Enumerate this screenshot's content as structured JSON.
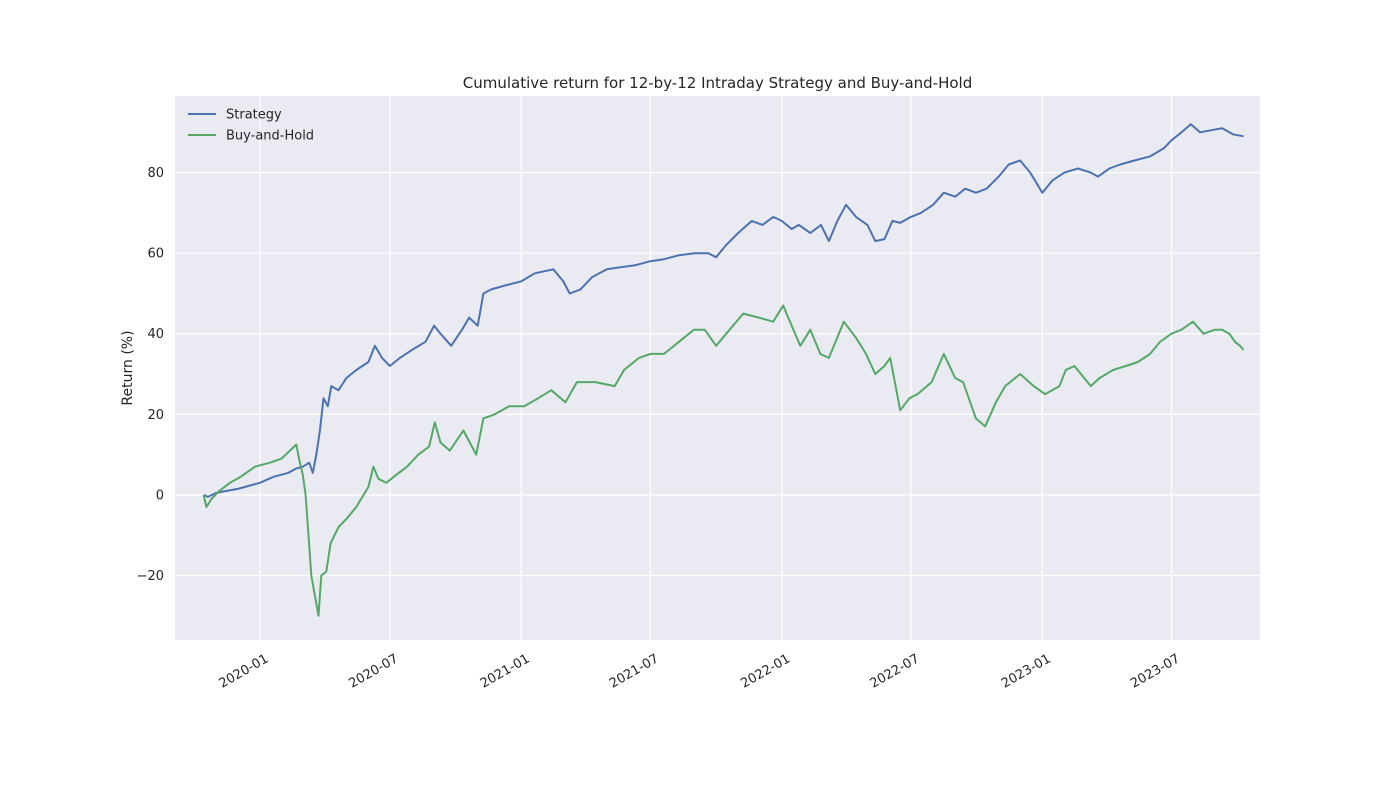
{
  "chart_data": {
    "type": "line",
    "title": "Cumulative return for 12-by-12 Intraday Strategy and Buy-and-Hold",
    "xlabel": "",
    "ylabel": "Return (%)",
    "x_axis_type": "date",
    "xlim": [
      "2019-09-04",
      "2023-11-02"
    ],
    "ylim": [
      -36,
      99
    ],
    "x_ticks": [
      "2020-01-01",
      "2020-07-01",
      "2021-01-01",
      "2021-07-01",
      "2022-01-01",
      "2022-07-01",
      "2023-01-01",
      "2023-07-01"
    ],
    "x_tick_labels": [
      "2020-01",
      "2020-07",
      "2021-01",
      "2021-07",
      "2022-01",
      "2022-07",
      "2023-01",
      "2023-07"
    ],
    "y_ticks": [
      -20,
      0,
      20,
      40,
      60,
      80
    ],
    "y_tick_labels": [
      "−20",
      "0",
      "20",
      "40",
      "60",
      "80"
    ],
    "grid": true,
    "legend_position": "top-left",
    "series": [
      {
        "name": "Strategy",
        "color": "#4c72b0",
        "points": [
          [
            "2019-10-14",
            0
          ],
          [
            "2019-10-20",
            -0.5
          ],
          [
            "2019-11-01",
            0.5
          ],
          [
            "2019-11-15",
            1
          ],
          [
            "2019-12-01",
            1.5
          ],
          [
            "2019-12-15",
            2.2
          ],
          [
            "2020-01-01",
            3
          ],
          [
            "2020-01-20",
            4.5
          ],
          [
            "2020-02-10",
            5.5
          ],
          [
            "2020-02-20",
            6.5
          ],
          [
            "2020-03-01",
            7
          ],
          [
            "2020-03-10",
            8
          ],
          [
            "2020-03-15",
            5.5
          ],
          [
            "2020-03-20",
            10
          ],
          [
            "2020-03-25",
            16
          ],
          [
            "2020-03-30",
            24
          ],
          [
            "2020-04-05",
            22
          ],
          [
            "2020-04-10",
            27
          ],
          [
            "2020-04-20",
            26
          ],
          [
            "2020-05-01",
            29
          ],
          [
            "2020-05-15",
            31
          ],
          [
            "2020-06-01",
            33
          ],
          [
            "2020-06-10",
            37
          ],
          [
            "2020-06-20",
            34
          ],
          [
            "2020-07-01",
            32
          ],
          [
            "2020-07-15",
            34
          ],
          [
            "2020-08-01",
            36
          ],
          [
            "2020-08-20",
            38
          ],
          [
            "2020-09-01",
            42
          ],
          [
            "2020-09-10",
            40
          ],
          [
            "2020-09-25",
            37
          ],
          [
            "2020-10-10",
            41
          ],
          [
            "2020-10-20",
            44
          ],
          [
            "2020-11-01",
            42
          ],
          [
            "2020-11-09",
            50
          ],
          [
            "2020-11-20",
            51
          ],
          [
            "2020-12-10",
            52
          ],
          [
            "2021-01-01",
            53
          ],
          [
            "2021-01-20",
            55
          ],
          [
            "2021-02-15",
            56
          ],
          [
            "2021-03-01",
            53
          ],
          [
            "2021-03-10",
            50
          ],
          [
            "2021-03-25",
            51
          ],
          [
            "2021-04-10",
            54
          ],
          [
            "2021-05-01",
            56
          ],
          [
            "2021-05-20",
            56.5
          ],
          [
            "2021-06-10",
            57
          ],
          [
            "2021-07-01",
            58
          ],
          [
            "2021-07-20",
            58.5
          ],
          [
            "2021-08-10",
            59.5
          ],
          [
            "2021-09-01",
            60
          ],
          [
            "2021-09-20",
            60
          ],
          [
            "2021-10-01",
            59
          ],
          [
            "2021-10-15",
            62
          ],
          [
            "2021-11-01",
            65
          ],
          [
            "2021-11-20",
            68
          ],
          [
            "2021-12-05",
            67
          ],
          [
            "2021-12-20",
            69
          ],
          [
            "2022-01-01",
            68
          ],
          [
            "2022-01-15",
            66
          ],
          [
            "2022-01-25",
            67
          ],
          [
            "2022-02-10",
            65
          ],
          [
            "2022-02-25",
            67
          ],
          [
            "2022-03-08",
            63
          ],
          [
            "2022-03-20",
            68
          ],
          [
            "2022-04-01",
            72
          ],
          [
            "2022-04-15",
            69
          ],
          [
            "2022-05-01",
            67
          ],
          [
            "2022-05-12",
            63
          ],
          [
            "2022-05-25",
            63.5
          ],
          [
            "2022-06-05",
            68
          ],
          [
            "2022-06-16",
            67.5
          ],
          [
            "2022-07-01",
            69
          ],
          [
            "2022-07-15",
            70
          ],
          [
            "2022-08-01",
            72
          ],
          [
            "2022-08-16",
            75
          ],
          [
            "2022-09-01",
            74
          ],
          [
            "2022-09-15",
            76
          ],
          [
            "2022-09-30",
            75
          ],
          [
            "2022-10-15",
            76
          ],
          [
            "2022-11-01",
            79
          ],
          [
            "2022-11-15",
            82
          ],
          [
            "2022-12-01",
            83
          ],
          [
            "2022-12-15",
            80
          ],
          [
            "2023-01-01",
            75
          ],
          [
            "2023-01-15",
            78
          ],
          [
            "2023-02-01",
            80
          ],
          [
            "2023-02-20",
            81
          ],
          [
            "2023-03-10",
            80
          ],
          [
            "2023-03-20",
            79
          ],
          [
            "2023-04-05",
            81
          ],
          [
            "2023-04-20",
            82
          ],
          [
            "2023-05-10",
            83
          ],
          [
            "2023-06-01",
            84
          ],
          [
            "2023-06-20",
            86
          ],
          [
            "2023-07-01",
            88
          ],
          [
            "2023-07-15",
            90
          ],
          [
            "2023-07-28",
            92
          ],
          [
            "2023-08-10",
            90
          ],
          [
            "2023-08-25",
            90.5
          ],
          [
            "2023-09-10",
            91
          ],
          [
            "2023-09-25",
            89.5
          ],
          [
            "2023-10-10",
            89
          ]
        ]
      },
      {
        "name": "Buy-and-Hold",
        "color": "#55a868",
        "points": [
          [
            "2019-10-14",
            0
          ],
          [
            "2019-10-18",
            -3
          ],
          [
            "2019-10-25",
            -1
          ],
          [
            "2019-11-05",
            1
          ],
          [
            "2019-11-20",
            3
          ],
          [
            "2019-12-05",
            4.5
          ],
          [
            "2019-12-25",
            7
          ],
          [
            "2020-01-15",
            8
          ],
          [
            "2020-01-31",
            9
          ],
          [
            "2020-02-12",
            11
          ],
          [
            "2020-02-21",
            12.5
          ],
          [
            "2020-02-26",
            8
          ],
          [
            "2020-03-01",
            5
          ],
          [
            "2020-03-05",
            0
          ],
          [
            "2020-03-09",
            -10
          ],
          [
            "2020-03-13",
            -20
          ],
          [
            "2020-03-18",
            -25
          ],
          [
            "2020-03-23",
            -30
          ],
          [
            "2020-03-27",
            -20
          ],
          [
            "2020-04-03",
            -19
          ],
          [
            "2020-04-09",
            -12
          ],
          [
            "2020-04-20",
            -8
          ],
          [
            "2020-05-01",
            -6
          ],
          [
            "2020-05-15",
            -3
          ],
          [
            "2020-06-01",
            2
          ],
          [
            "2020-06-08",
            7
          ],
          [
            "2020-06-15",
            4
          ],
          [
            "2020-06-26",
            3
          ],
          [
            "2020-07-10",
            5
          ],
          [
            "2020-07-25",
            7
          ],
          [
            "2020-08-10",
            10
          ],
          [
            "2020-08-25",
            12
          ],
          [
            "2020-09-02",
            18
          ],
          [
            "2020-09-10",
            13
          ],
          [
            "2020-09-23",
            11
          ],
          [
            "2020-10-12",
            16
          ],
          [
            "2020-10-30",
            10
          ],
          [
            "2020-11-09",
            19
          ],
          [
            "2020-11-25",
            20
          ],
          [
            "2020-12-15",
            22
          ],
          [
            "2021-01-05",
            22
          ],
          [
            "2021-01-25",
            24
          ],
          [
            "2021-02-12",
            26
          ],
          [
            "2021-03-04",
            23
          ],
          [
            "2021-03-20",
            28
          ],
          [
            "2021-04-15",
            28
          ],
          [
            "2021-05-12",
            27
          ],
          [
            "2021-05-25",
            31
          ],
          [
            "2021-06-15",
            34
          ],
          [
            "2021-07-01",
            35
          ],
          [
            "2021-07-20",
            35
          ],
          [
            "2021-08-10",
            38
          ],
          [
            "2021-08-31",
            41
          ],
          [
            "2021-09-15",
            41
          ],
          [
            "2021-10-01",
            37
          ],
          [
            "2021-10-20",
            41
          ],
          [
            "2021-11-08",
            45
          ],
          [
            "2021-11-30",
            44
          ],
          [
            "2021-12-20",
            43
          ],
          [
            "2022-01-03",
            47
          ],
          [
            "2022-01-10",
            44
          ],
          [
            "2022-01-27",
            37
          ],
          [
            "2022-02-10",
            41
          ],
          [
            "2022-02-24",
            35
          ],
          [
            "2022-03-08",
            34
          ],
          [
            "2022-03-29",
            43
          ],
          [
            "2022-04-15",
            39
          ],
          [
            "2022-04-29",
            35
          ],
          [
            "2022-05-12",
            30
          ],
          [
            "2022-05-25",
            32
          ],
          [
            "2022-06-02",
            34
          ],
          [
            "2022-06-16",
            21
          ],
          [
            "2022-06-29",
            24
          ],
          [
            "2022-07-10",
            25
          ],
          [
            "2022-07-30",
            28
          ],
          [
            "2022-08-16",
            35
          ],
          [
            "2022-09-01",
            29
          ],
          [
            "2022-09-12",
            28
          ],
          [
            "2022-09-30",
            19
          ],
          [
            "2022-10-13",
            17
          ],
          [
            "2022-10-28",
            23
          ],
          [
            "2022-11-10",
            27
          ],
          [
            "2022-12-01",
            30
          ],
          [
            "2022-12-20",
            27
          ],
          [
            "2023-01-05",
            25
          ],
          [
            "2023-01-25",
            27
          ],
          [
            "2023-02-03",
            31
          ],
          [
            "2023-02-15",
            32
          ],
          [
            "2023-03-10",
            27
          ],
          [
            "2023-03-22",
            29
          ],
          [
            "2023-04-10",
            31
          ],
          [
            "2023-04-28",
            32
          ],
          [
            "2023-05-15",
            33
          ],
          [
            "2023-06-01",
            35
          ],
          [
            "2023-06-15",
            38
          ],
          [
            "2023-07-01",
            40
          ],
          [
            "2023-07-15",
            41
          ],
          [
            "2023-07-31",
            43
          ],
          [
            "2023-08-15",
            40
          ],
          [
            "2023-08-31",
            41
          ],
          [
            "2023-09-10",
            41
          ],
          [
            "2023-09-20",
            40
          ],
          [
            "2023-09-28",
            38
          ],
          [
            "2023-10-05",
            37
          ],
          [
            "2023-10-10",
            36
          ]
        ]
      }
    ]
  }
}
